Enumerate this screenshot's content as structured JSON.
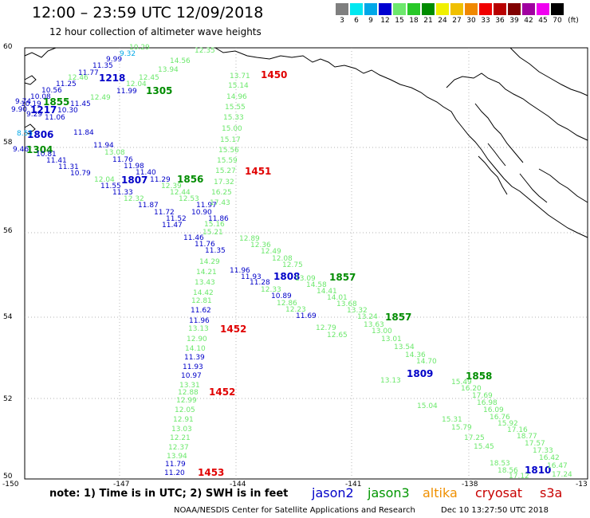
{
  "header": {
    "title": "12:00 – 23:59 UTC 12/09/2018",
    "subtitle": "12 hour collection of altimeter wave heights"
  },
  "legend": {
    "unit": "(ft)",
    "bins": [
      {
        "label": "3",
        "color": "#7f7f7f"
      },
      {
        "label": "6",
        "color": "#00e8f0"
      },
      {
        "label": "9",
        "color": "#00a8e8"
      },
      {
        "label": "12",
        "color": "#0000d0"
      },
      {
        "label": "15",
        "color": "#6ce86c"
      },
      {
        "label": "18",
        "color": "#28c828"
      },
      {
        "label": "21",
        "color": "#008c00"
      },
      {
        "label": "24",
        "color": "#f0f000"
      },
      {
        "label": "27",
        "color": "#f0c000"
      },
      {
        "label": "30",
        "color": "#f08800"
      },
      {
        "label": "33",
        "color": "#f00000"
      },
      {
        "label": "36",
        "color": "#b80000"
      },
      {
        "label": "39",
        "color": "#800000"
      },
      {
        "label": "42",
        "color": "#a000a0"
      },
      {
        "label": "45",
        "color": "#f000f0"
      },
      {
        "label": "70",
        "color": "#000000"
      }
    ]
  },
  "axes": {
    "lat_labels": [
      "60",
      "58",
      "56",
      "54",
      "52",
      "50"
    ],
    "lon_labels": [
      "-150",
      "-147",
      "-144",
      "-141",
      "-138",
      "-13"
    ]
  },
  "times": [
    {
      "text": "1450",
      "color": "#e00000"
    },
    {
      "text": "1451",
      "color": "#e00000"
    },
    {
      "text": "1452",
      "color": "#e00000"
    },
    {
      "text": "1452",
      "color": "#e00000"
    },
    {
      "text": "1453",
      "color": "#e00000"
    },
    {
      "text": "1218",
      "color": "#0000c8"
    },
    {
      "text": "1305",
      "color": "#008c00"
    },
    {
      "text": "1855",
      "color": "#008c00"
    },
    {
      "text": "1217",
      "color": "#0000c8"
    },
    {
      "text": "1806",
      "color": "#0000c8"
    },
    {
      "text": "1304",
      "color": "#008c00"
    },
    {
      "text": "1807",
      "color": "#0000c8"
    },
    {
      "text": "1856",
      "color": "#008c00"
    },
    {
      "text": "1808",
      "color": "#0000c8"
    },
    {
      "text": "1857",
      "color": "#008c00"
    },
    {
      "text": "1857",
      "color": "#008c00"
    },
    {
      "text": "1809",
      "color": "#0000c8"
    },
    {
      "text": "1858",
      "color": "#008c00"
    },
    {
      "text": "1810",
      "color": "#0000c8"
    }
  ],
  "obs": [
    {
      "v": "10.29",
      "c": "#6ce86c"
    },
    {
      "v": "9.32",
      "c": "#00a8e8"
    },
    {
      "v": "9.99",
      "c": "#0000c8"
    },
    {
      "v": "11.35",
      "c": "#0000c8"
    },
    {
      "v": "11.77",
      "c": "#0000c8"
    },
    {
      "v": "12.46",
      "c": "#6ce86c"
    },
    {
      "v": "11.25",
      "c": "#0000c8"
    },
    {
      "v": "10.56",
      "c": "#0000c8"
    },
    {
      "v": "10.08",
      "c": "#0000c8"
    },
    {
      "v": "9.74",
      "c": "#0000c8"
    },
    {
      "v": "10.19",
      "c": "#0000c8"
    },
    {
      "v": "9.90",
      "c": "#0000c8"
    },
    {
      "v": "11.45",
      "c": "#0000c8"
    },
    {
      "v": "10.30",
      "c": "#0000c8"
    },
    {
      "v": "11.06",
      "c": "#0000c8"
    },
    {
      "v": "9.29",
      "c": "#0000c8"
    },
    {
      "v": "12.35",
      "c": "#6ce86c"
    },
    {
      "v": "14.56",
      "c": "#6ce86c"
    },
    {
      "v": "13.94",
      "c": "#6ce86c"
    },
    {
      "v": "12.45",
      "c": "#6ce86c"
    },
    {
      "v": "12.04",
      "c": "#6ce86c"
    },
    {
      "v": "11.99",
      "c": "#0000c8"
    },
    {
      "v": "12.49",
      "c": "#6ce86c"
    },
    {
      "v": "8.55",
      "c": "#00a8e8"
    },
    {
      "v": "11.84",
      "c": "#0000c8"
    },
    {
      "v": "9.46",
      "c": "#0000c8"
    },
    {
      "v": "11.94",
      "c": "#0000c8"
    },
    {
      "v": "13.08",
      "c": "#6ce86c"
    },
    {
      "v": "10.81",
      "c": "#0000c8"
    },
    {
      "v": "11.41",
      "c": "#0000c8"
    },
    {
      "v": "11.31",
      "c": "#0000c8"
    },
    {
      "v": "10.79",
      "c": "#0000c8"
    },
    {
      "v": "11.76",
      "c": "#0000c8"
    },
    {
      "v": "11.98",
      "c": "#0000c8"
    },
    {
      "v": "11.40",
      "c": "#0000c8"
    },
    {
      "v": "11.29",
      "c": "#0000c8"
    },
    {
      "v": "12.04",
      "c": "#6ce86c"
    },
    {
      "v": "11.55",
      "c": "#0000c8"
    },
    {
      "v": "11.33",
      "c": "#0000c8"
    },
    {
      "v": "12.39",
      "c": "#6ce86c"
    },
    {
      "v": "12.44",
      "c": "#6ce86c"
    },
    {
      "v": "12.53",
      "c": "#6ce86c"
    },
    {
      "v": "12.32",
      "c": "#6ce86c"
    },
    {
      "v": "11.87",
      "c": "#0000c8"
    },
    {
      "v": "11.72",
      "c": "#0000c8"
    },
    {
      "v": "11.52",
      "c": "#0000c8"
    },
    {
      "v": "11.47",
      "c": "#0000c8"
    },
    {
      "v": "11.97",
      "c": "#0000c8"
    },
    {
      "v": "10.90",
      "c": "#0000c8"
    },
    {
      "v": "11.86",
      "c": "#0000c8"
    },
    {
      "v": "13.71",
      "c": "#6ce86c"
    },
    {
      "v": "15.14",
      "c": "#6ce86c"
    },
    {
      "v": "14.96",
      "c": "#6ce86c"
    },
    {
      "v": "15.55",
      "c": "#6ce86c"
    },
    {
      "v": "15.33",
      "c": "#6ce86c"
    },
    {
      "v": "15.00",
      "c": "#6ce86c"
    },
    {
      "v": "15.17",
      "c": "#6ce86c"
    },
    {
      "v": "15.56",
      "c": "#6ce86c"
    },
    {
      "v": "15.59",
      "c": "#6ce86c"
    },
    {
      "v": "15.27",
      "c": "#6ce86c"
    },
    {
      "v": "17.32",
      "c": "#6ce86c"
    },
    {
      "v": "16.25",
      "c": "#6ce86c"
    },
    {
      "v": "17.43",
      "c": "#6ce86c"
    },
    {
      "v": "15.16",
      "c": "#6ce86c"
    },
    {
      "v": "15.21",
      "c": "#6ce86c"
    },
    {
      "v": "11.46",
      "c": "#0000c8"
    },
    {
      "v": "11.76",
      "c": "#0000c8"
    },
    {
      "v": "11.35",
      "c": "#0000c8"
    },
    {
      "v": "14.29",
      "c": "#6ce86c"
    },
    {
      "v": "14.21",
      "c": "#6ce86c"
    },
    {
      "v": "13.43",
      "c": "#6ce86c"
    },
    {
      "v": "14.42",
      "c": "#6ce86c"
    },
    {
      "v": "12.81",
      "c": "#6ce86c"
    },
    {
      "v": "11.62",
      "c": "#0000c8"
    },
    {
      "v": "11.96",
      "c": "#0000c8"
    },
    {
      "v": "13.13",
      "c": "#6ce86c"
    },
    {
      "v": "12.90",
      "c": "#6ce86c"
    },
    {
      "v": "14.10",
      "c": "#6ce86c"
    },
    {
      "v": "11.39",
      "c": "#0000c8"
    },
    {
      "v": "11.93",
      "c": "#0000c8"
    },
    {
      "v": "10.97",
      "c": "#0000c8"
    },
    {
      "v": "13.31",
      "c": "#6ce86c"
    },
    {
      "v": "12.88",
      "c": "#6ce86c"
    },
    {
      "v": "12.99",
      "c": "#6ce86c"
    },
    {
      "v": "12.05",
      "c": "#6ce86c"
    },
    {
      "v": "12.91",
      "c": "#6ce86c"
    },
    {
      "v": "13.03",
      "c": "#6ce86c"
    },
    {
      "v": "12.21",
      "c": "#6ce86c"
    },
    {
      "v": "12.37",
      "c": "#6ce86c"
    },
    {
      "v": "13.94",
      "c": "#6ce86c"
    },
    {
      "v": "11.79",
      "c": "#0000c8"
    },
    {
      "v": "11.20",
      "c": "#0000c8"
    },
    {
      "v": "12.89",
      "c": "#6ce86c"
    },
    {
      "v": "12.36",
      "c": "#6ce86c"
    },
    {
      "v": "12.49",
      "c": "#6ce86c"
    },
    {
      "v": "12.08",
      "c": "#6ce86c"
    },
    {
      "v": "12.75",
      "c": "#6ce86c"
    },
    {
      "v": "11.96",
      "c": "#0000c8"
    },
    {
      "v": "11.93",
      "c": "#0000c8"
    },
    {
      "v": "11.28",
      "c": "#0000c8"
    },
    {
      "v": "12.33",
      "c": "#6ce86c"
    },
    {
      "v": "10.89",
      "c": "#0000c8"
    },
    {
      "v": "12.86",
      "c": "#6ce86c"
    },
    {
      "v": "12.23",
      "c": "#6ce86c"
    },
    {
      "v": "11.69",
      "c": "#0000c8"
    },
    {
      "v": "13.09",
      "c": "#6ce86c"
    },
    {
      "v": "14.58",
      "c": "#6ce86c"
    },
    {
      "v": "14.41",
      "c": "#6ce86c"
    },
    {
      "v": "14.01",
      "c": "#6ce86c"
    },
    {
      "v": "13.68",
      "c": "#6ce86c"
    },
    {
      "v": "13.32",
      "c": "#6ce86c"
    },
    {
      "v": "13.24",
      "c": "#6ce86c"
    },
    {
      "v": "13.63",
      "c": "#6ce86c"
    },
    {
      "v": "13.00",
      "c": "#6ce86c"
    },
    {
      "v": "12.79",
      "c": "#6ce86c"
    },
    {
      "v": "12.65",
      "c": "#6ce86c"
    },
    {
      "v": "13.01",
      "c": "#6ce86c"
    },
    {
      "v": "13.54",
      "c": "#6ce86c"
    },
    {
      "v": "14.36",
      "c": "#6ce86c"
    },
    {
      "v": "14.70",
      "c": "#6ce86c"
    },
    {
      "v": "13.13",
      "c": "#6ce86c"
    },
    {
      "v": "15.49",
      "c": "#6ce86c"
    },
    {
      "v": "16.20",
      "c": "#6ce86c"
    },
    {
      "v": "17.69",
      "c": "#6ce86c"
    },
    {
      "v": "16.98",
      "c": "#6ce86c"
    },
    {
      "v": "16.09",
      "c": "#6ce86c"
    },
    {
      "v": "16.76",
      "c": "#6ce86c"
    },
    {
      "v": "15.92",
      "c": "#6ce86c"
    },
    {
      "v": "17.16",
      "c": "#6ce86c"
    },
    {
      "v": "18.77",
      "c": "#6ce86c"
    },
    {
      "v": "17.57",
      "c": "#6ce86c"
    },
    {
      "v": "17.33",
      "c": "#6ce86c"
    },
    {
      "v": "16.42",
      "c": "#6ce86c"
    },
    {
      "v": "16.47",
      "c": "#6ce86c"
    },
    {
      "v": "17.24",
      "c": "#6ce86c"
    },
    {
      "v": "15.04",
      "c": "#6ce86c"
    },
    {
      "v": "15.31",
      "c": "#6ce86c"
    },
    {
      "v": "15.79",
      "c": "#6ce86c"
    },
    {
      "v": "17.25",
      "c": "#6ce86c"
    },
    {
      "v": "15.45",
      "c": "#6ce86c"
    },
    {
      "v": "18.53",
      "c": "#6ce86c"
    },
    {
      "v": "18.56",
      "c": "#6ce86c"
    },
    {
      "v": "17.12",
      "c": "#6ce86c"
    }
  ],
  "footer": {
    "notes": "note: 1) Time is in UTC; 2) SWH is in feet",
    "satellites": [
      {
        "name": "jason2",
        "color": "#0000c8"
      },
      {
        "name": "jason3",
        "color": "#009600"
      },
      {
        "name": "altika",
        "color": "#f09000"
      },
      {
        "name": "cryosat",
        "color": "#c80000"
      },
      {
        "name": "s3a",
        "color": "#c80000"
      }
    ],
    "credit": "NOAA/NESDIS Center for Satellite Applications and Research",
    "stamp": "Dec 10 13:27:50 UTC 2018"
  }
}
